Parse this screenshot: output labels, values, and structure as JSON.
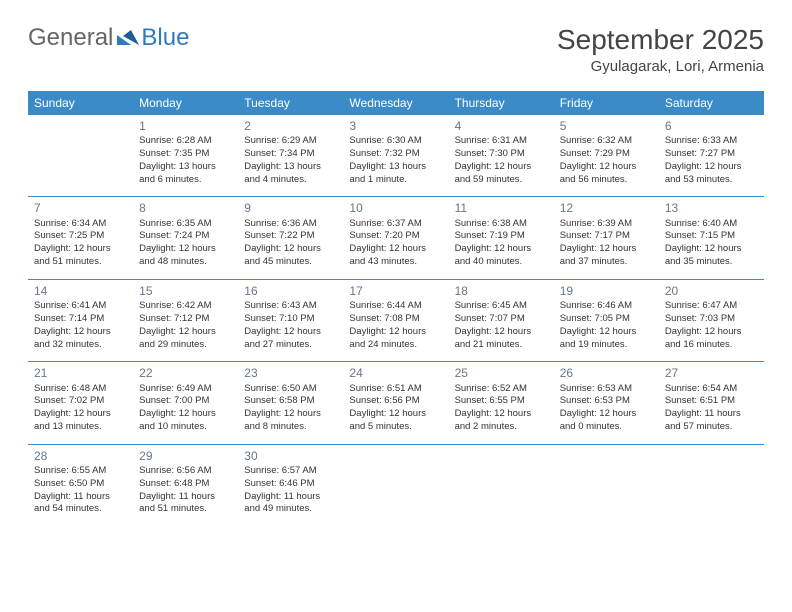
{
  "logo": {
    "general": "General",
    "blue": "Blue"
  },
  "header": {
    "month_title": "September 2025",
    "location": "Gyulagarak, Lori, Armenia"
  },
  "colors": {
    "header_bg": "#3b8bc9",
    "header_text": "#ffffff",
    "rule": "#3b8bc9",
    "logo_blue": "#2f7ac0"
  },
  "weekdays": [
    "Sunday",
    "Monday",
    "Tuesday",
    "Wednesday",
    "Thursday",
    "Friday",
    "Saturday"
  ],
  "weeks": [
    [
      null,
      {
        "n": "1",
        "sr": "Sunrise: 6:28 AM",
        "ss": "Sunset: 7:35 PM",
        "dl": "Daylight: 13 hours and 6 minutes."
      },
      {
        "n": "2",
        "sr": "Sunrise: 6:29 AM",
        "ss": "Sunset: 7:34 PM",
        "dl": "Daylight: 13 hours and 4 minutes."
      },
      {
        "n": "3",
        "sr": "Sunrise: 6:30 AM",
        "ss": "Sunset: 7:32 PM",
        "dl": "Daylight: 13 hours and 1 minute."
      },
      {
        "n": "4",
        "sr": "Sunrise: 6:31 AM",
        "ss": "Sunset: 7:30 PM",
        "dl": "Daylight: 12 hours and 59 minutes."
      },
      {
        "n": "5",
        "sr": "Sunrise: 6:32 AM",
        "ss": "Sunset: 7:29 PM",
        "dl": "Daylight: 12 hours and 56 minutes."
      },
      {
        "n": "6",
        "sr": "Sunrise: 6:33 AM",
        "ss": "Sunset: 7:27 PM",
        "dl": "Daylight: 12 hours and 53 minutes."
      }
    ],
    [
      {
        "n": "7",
        "sr": "Sunrise: 6:34 AM",
        "ss": "Sunset: 7:25 PM",
        "dl": "Daylight: 12 hours and 51 minutes."
      },
      {
        "n": "8",
        "sr": "Sunrise: 6:35 AM",
        "ss": "Sunset: 7:24 PM",
        "dl": "Daylight: 12 hours and 48 minutes."
      },
      {
        "n": "9",
        "sr": "Sunrise: 6:36 AM",
        "ss": "Sunset: 7:22 PM",
        "dl": "Daylight: 12 hours and 45 minutes."
      },
      {
        "n": "10",
        "sr": "Sunrise: 6:37 AM",
        "ss": "Sunset: 7:20 PM",
        "dl": "Daylight: 12 hours and 43 minutes."
      },
      {
        "n": "11",
        "sr": "Sunrise: 6:38 AM",
        "ss": "Sunset: 7:19 PM",
        "dl": "Daylight: 12 hours and 40 minutes."
      },
      {
        "n": "12",
        "sr": "Sunrise: 6:39 AM",
        "ss": "Sunset: 7:17 PM",
        "dl": "Daylight: 12 hours and 37 minutes."
      },
      {
        "n": "13",
        "sr": "Sunrise: 6:40 AM",
        "ss": "Sunset: 7:15 PM",
        "dl": "Daylight: 12 hours and 35 minutes."
      }
    ],
    [
      {
        "n": "14",
        "sr": "Sunrise: 6:41 AM",
        "ss": "Sunset: 7:14 PM",
        "dl": "Daylight: 12 hours and 32 minutes."
      },
      {
        "n": "15",
        "sr": "Sunrise: 6:42 AM",
        "ss": "Sunset: 7:12 PM",
        "dl": "Daylight: 12 hours and 29 minutes."
      },
      {
        "n": "16",
        "sr": "Sunrise: 6:43 AM",
        "ss": "Sunset: 7:10 PM",
        "dl": "Daylight: 12 hours and 27 minutes."
      },
      {
        "n": "17",
        "sr": "Sunrise: 6:44 AM",
        "ss": "Sunset: 7:08 PM",
        "dl": "Daylight: 12 hours and 24 minutes."
      },
      {
        "n": "18",
        "sr": "Sunrise: 6:45 AM",
        "ss": "Sunset: 7:07 PM",
        "dl": "Daylight: 12 hours and 21 minutes."
      },
      {
        "n": "19",
        "sr": "Sunrise: 6:46 AM",
        "ss": "Sunset: 7:05 PM",
        "dl": "Daylight: 12 hours and 19 minutes."
      },
      {
        "n": "20",
        "sr": "Sunrise: 6:47 AM",
        "ss": "Sunset: 7:03 PM",
        "dl": "Daylight: 12 hours and 16 minutes."
      }
    ],
    [
      {
        "n": "21",
        "sr": "Sunrise: 6:48 AM",
        "ss": "Sunset: 7:02 PM",
        "dl": "Daylight: 12 hours and 13 minutes."
      },
      {
        "n": "22",
        "sr": "Sunrise: 6:49 AM",
        "ss": "Sunset: 7:00 PM",
        "dl": "Daylight: 12 hours and 10 minutes."
      },
      {
        "n": "23",
        "sr": "Sunrise: 6:50 AM",
        "ss": "Sunset: 6:58 PM",
        "dl": "Daylight: 12 hours and 8 minutes."
      },
      {
        "n": "24",
        "sr": "Sunrise: 6:51 AM",
        "ss": "Sunset: 6:56 PM",
        "dl": "Daylight: 12 hours and 5 minutes."
      },
      {
        "n": "25",
        "sr": "Sunrise: 6:52 AM",
        "ss": "Sunset: 6:55 PM",
        "dl": "Daylight: 12 hours and 2 minutes."
      },
      {
        "n": "26",
        "sr": "Sunrise: 6:53 AM",
        "ss": "Sunset: 6:53 PM",
        "dl": "Daylight: 12 hours and 0 minutes."
      },
      {
        "n": "27",
        "sr": "Sunrise: 6:54 AM",
        "ss": "Sunset: 6:51 PM",
        "dl": "Daylight: 11 hours and 57 minutes."
      }
    ],
    [
      {
        "n": "28",
        "sr": "Sunrise: 6:55 AM",
        "ss": "Sunset: 6:50 PM",
        "dl": "Daylight: 11 hours and 54 minutes."
      },
      {
        "n": "29",
        "sr": "Sunrise: 6:56 AM",
        "ss": "Sunset: 6:48 PM",
        "dl": "Daylight: 11 hours and 51 minutes."
      },
      {
        "n": "30",
        "sr": "Sunrise: 6:57 AM",
        "ss": "Sunset: 6:46 PM",
        "dl": "Daylight: 11 hours and 49 minutes."
      },
      null,
      null,
      null,
      null
    ]
  ]
}
